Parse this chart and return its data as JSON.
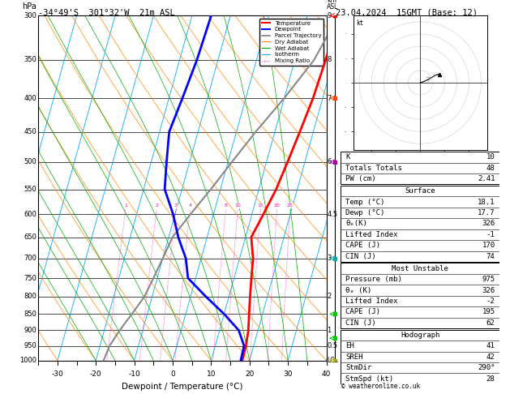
{
  "title_left": "-34°49'S  301°32'W  21m ASL",
  "title_right": "23.04.2024  15GMT (Base: 12)",
  "xlabel": "Dewpoint / Temperature (°C)",
  "P_min": 300,
  "P_max": 1000,
  "T_min": -35,
  "T_max": 40,
  "skew": 25.0,
  "p_gridlines": [
    300,
    350,
    400,
    450,
    500,
    550,
    600,
    650,
    700,
    750,
    800,
    850,
    900,
    950,
    1000
  ],
  "temp_profile_p": [
    300,
    350,
    400,
    450,
    500,
    550,
    600,
    650,
    700,
    750,
    800,
    850,
    900,
    950,
    1000
  ],
  "temp_profile_T": [
    18.5,
    18.0,
    17.5,
    16.5,
    15.5,
    14.5,
    13.0,
    11.5,
    13.5,
    14.5,
    15.5,
    16.5,
    17.5,
    18.0,
    18.1
  ],
  "dewp_profile_T": [
    -15.0,
    -15.5,
    -16.5,
    -17.5,
    -16.0,
    -14.5,
    -10.5,
    -7.5,
    -4.0,
    -2.0,
    4.0,
    10.0,
    15.0,
    17.5,
    17.7
  ],
  "parcel_profile_T": [
    18.1,
    15.0,
    10.0,
    5.0,
    1.0,
    -2.5,
    -6.0,
    -9.0,
    -10.0,
    -11.0,
    -12.0,
    -14.0,
    -16.0,
    -17.5,
    -18.0
  ],
  "isotherm_vals": [
    -50,
    -40,
    -30,
    -20,
    -10,
    0,
    10,
    20,
    30,
    40,
    50
  ],
  "dry_adiabat_theta": [
    -40,
    -30,
    -20,
    -10,
    0,
    10,
    20,
    30,
    40,
    50,
    60,
    70,
    80,
    90,
    100,
    110,
    120,
    130,
    140,
    150,
    160,
    170
  ],
  "wet_adiabat_T0": [
    -20,
    -15,
    -10,
    -5,
    0,
    5,
    10,
    15,
    20,
    25,
    30,
    35
  ],
  "mixing_ratio_vals": [
    1,
    2,
    3,
    4,
    8,
    10,
    15,
    20,
    25
  ],
  "temp_color": "#ff0000",
  "dewp_color": "#0000ff",
  "parcel_color": "#888888",
  "isotherm_color": "#00aaff",
  "dry_adiabat_color": "#ff8800",
  "wet_adiabat_color": "#00aa00",
  "mixing_ratio_color": "#ff00aa",
  "stats_K": "10",
  "stats_TT": "48",
  "stats_PW": "2.41",
  "stats_surf_T": "18.1",
  "stats_surf_Td": "17.7",
  "stats_surf_theta": "326",
  "stats_surf_LI": "-1",
  "stats_surf_CAPE": "170",
  "stats_surf_CIN": "74",
  "stats_mu_P": "975",
  "stats_mu_theta": "326",
  "stats_mu_LI": "-2",
  "stats_mu_CAPE": "195",
  "stats_mu_CIN": "62",
  "stats_EH": "41",
  "stats_SREH": "42",
  "stats_StmDir": "290°",
  "stats_StmSpd": "28",
  "copyright": "© weatheronline.co.uk",
  "wind_barbs": [
    {
      "p": 300,
      "color": "#ff0000",
      "u": -5,
      "v": 5
    },
    {
      "p": 400,
      "color": "#ff4400",
      "u": -4,
      "v": 4
    },
    {
      "p": 500,
      "color": "#aa00aa",
      "u": -2,
      "v": 2
    },
    {
      "p": 700,
      "color": "#00aaaa",
      "u": -1,
      "v": 1
    },
    {
      "p": 850,
      "color": "#00cc00",
      "u": -2,
      "v": 2
    },
    {
      "p": 925,
      "color": "#00cc00",
      "u": -3,
      "v": 2
    },
    {
      "p": 1000,
      "color": "#aaaa00",
      "u": -2,
      "v": 1
    }
  ]
}
